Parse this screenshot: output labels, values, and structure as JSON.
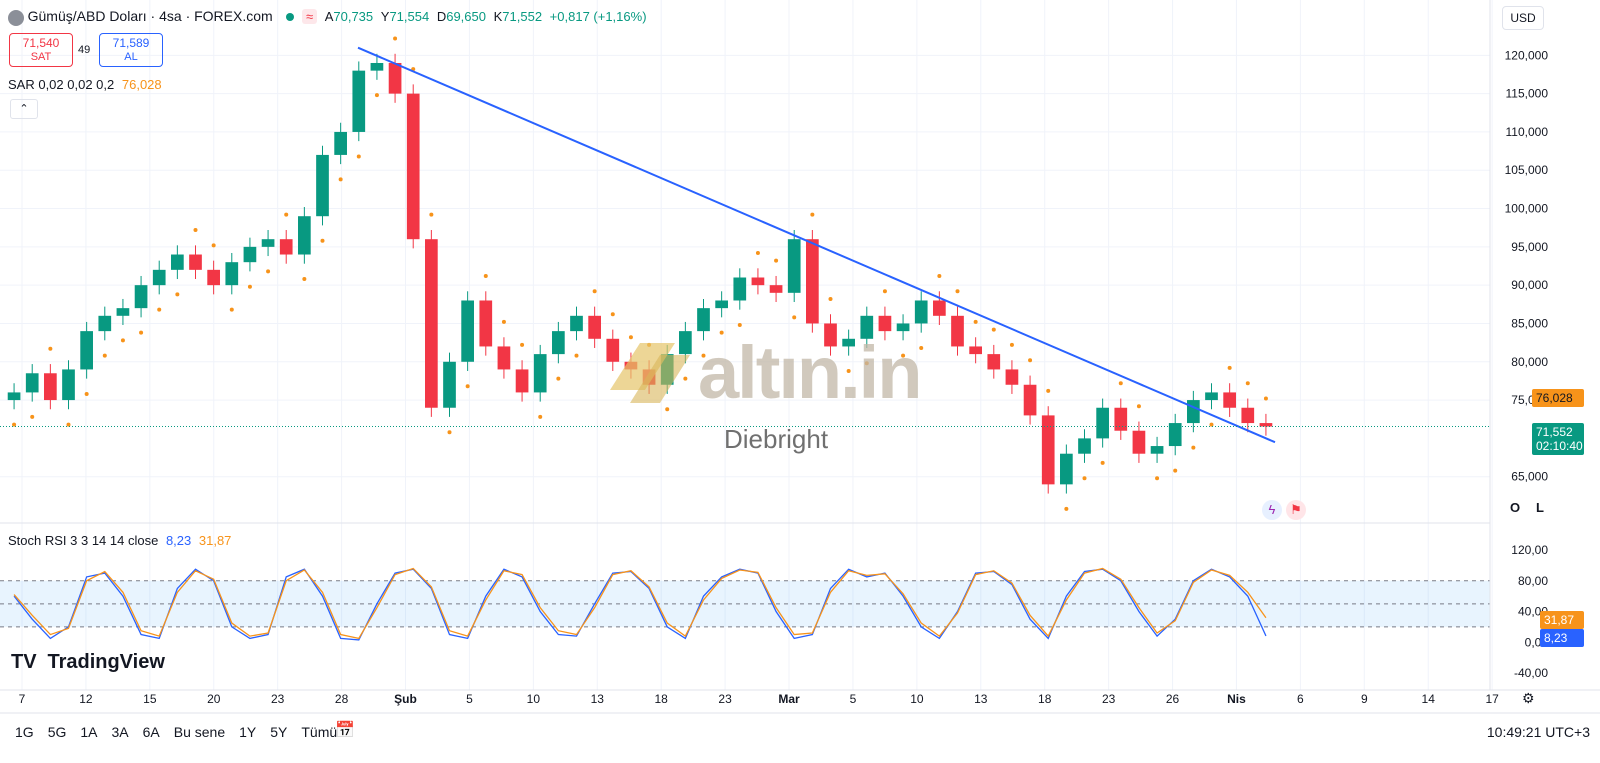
{
  "header": {
    "symbol": "Gümüş/ABD Doları · 4sa · FOREX.com",
    "ohlc": {
      "o_label": "A",
      "o": "70,735",
      "h_label": "Y",
      "h": "71,554",
      "l_label": "D",
      "l": "69,650",
      "c_label": "K",
      "c": "71,552",
      "change": "+0,817 (+1,16%)"
    },
    "currency": "USD"
  },
  "trade": {
    "sell_price": "71,540",
    "sell_label": "SAT",
    "spread": "49",
    "buy_price": "71,589",
    "buy_label": "AL"
  },
  "indicators": {
    "sar_label": "SAR 0,02 0,02 0,2",
    "sar_value": "76,028",
    "stoch_label": "Stoch RSI 3 3 14 14 close",
    "stoch_k": "8,23",
    "stoch_d": "31,87"
  },
  "watermark": {
    "logo": "altın.in",
    "sub": "Diebright"
  },
  "branding": {
    "logo": "TradingView"
  },
  "price_tags": {
    "sar": "76,028",
    "last": "71,552",
    "countdown": "02:10:40",
    "stoch_d": "31,87",
    "stoch_k": "8,23"
  },
  "side_buttons": {
    "o": "O",
    "l": "L"
  },
  "bottom_bar": {
    "ranges": [
      "1G",
      "5G",
      "1A",
      "3A",
      "6A",
      "Bu sene",
      "1Y",
      "5Y",
      "Tümü"
    ],
    "time": "10:49:21 UTC+3"
  },
  "colors": {
    "up": "#089981",
    "down": "#f23645",
    "sar": "#f7931a",
    "trendline": "#2962ff",
    "stoch_k": "#2962ff",
    "stoch_d": "#f7931a"
  },
  "chart_data": [
    {
      "type": "candlestick",
      "title": "Gümüş/ABD Doları · 4sa · FOREX.com",
      "ylim": [
        60,
        122
      ],
      "y_ticks": [
        "120,000",
        "115,000",
        "110,000",
        "105,000",
        "100,000",
        "95,000",
        "90,000",
        "85,000",
        "80,000",
        "75,000",
        "65,000"
      ],
      "x_ticks": [
        "7",
        "12",
        "15",
        "20",
        "23",
        "28",
        "Şub",
        "5",
        "10",
        "13",
        "18",
        "23",
        "Mar",
        "5",
        "10",
        "13",
        "18",
        "23",
        "26",
        "Nis",
        "6",
        "9",
        "14",
        "17"
      ],
      "series": [
        {
          "name": "close",
          "values": [
            76,
            78.5,
            75,
            79,
            84,
            86,
            87,
            90,
            92,
            94,
            92,
            90,
            93,
            95,
            96,
            94,
            99,
            107,
            110,
            118,
            119,
            115,
            96,
            74,
            80,
            88,
            82,
            79,
            76,
            81,
            84,
            86,
            83,
            80,
            79,
            77,
            81,
            84,
            87,
            88,
            91,
            90,
            89,
            96,
            85,
            82,
            83,
            86,
            84,
            85,
            88,
            86,
            82,
            81,
            79,
            77,
            73,
            64,
            68,
            70,
            74,
            71,
            68,
            69,
            72,
            75,
            76,
            74,
            72,
            71.55
          ]
        }
      ],
      "annotations": {
        "trendline_from": 121,
        "trendline_to": 69.5,
        "last_price": 71.552
      }
    },
    {
      "type": "line",
      "title": "Stoch RSI 3 3 14 14 close",
      "ylim": [
        -40,
        120
      ],
      "y_ticks": [
        "120,00",
        "80,00",
        "40,00",
        "0,00",
        "-40,00"
      ],
      "bands": [
        20,
        50,
        80
      ],
      "series": [
        {
          "name": "K",
          "values": [
            60,
            30,
            5,
            20,
            85,
            90,
            60,
            10,
            5,
            70,
            95,
            80,
            20,
            5,
            10,
            85,
            95,
            60,
            5,
            3,
            50,
            90,
            95,
            70,
            10,
            5,
            60,
            95,
            85,
            40,
            10,
            8,
            50,
            90,
            92,
            70,
            20,
            5,
            60,
            85,
            95,
            90,
            40,
            5,
            10,
            70,
            95,
            85,
            90,
            60,
            20,
            5,
            40,
            90,
            92,
            75,
            30,
            5,
            60,
            92,
            95,
            80,
            40,
            8,
            30,
            80,
            95,
            85,
            60,
            8.23
          ]
        },
        {
          "name": "D",
          "values": [
            62,
            35,
            10,
            18,
            80,
            92,
            65,
            15,
            8,
            65,
            93,
            82,
            25,
            8,
            12,
            80,
            94,
            65,
            10,
            5,
            45,
            88,
            96,
            72,
            15,
            8,
            55,
            93,
            88,
            45,
            15,
            10,
            45,
            88,
            93,
            72,
            25,
            8,
            55,
            83,
            94,
            91,
            45,
            10,
            12,
            65,
            93,
            87,
            89,
            63,
            25,
            8,
            38,
            88,
            93,
            77,
            35,
            8,
            55,
            90,
            96,
            82,
            45,
            12,
            28,
            78,
            94,
            87,
            65,
            31.87
          ]
        }
      ]
    }
  ]
}
